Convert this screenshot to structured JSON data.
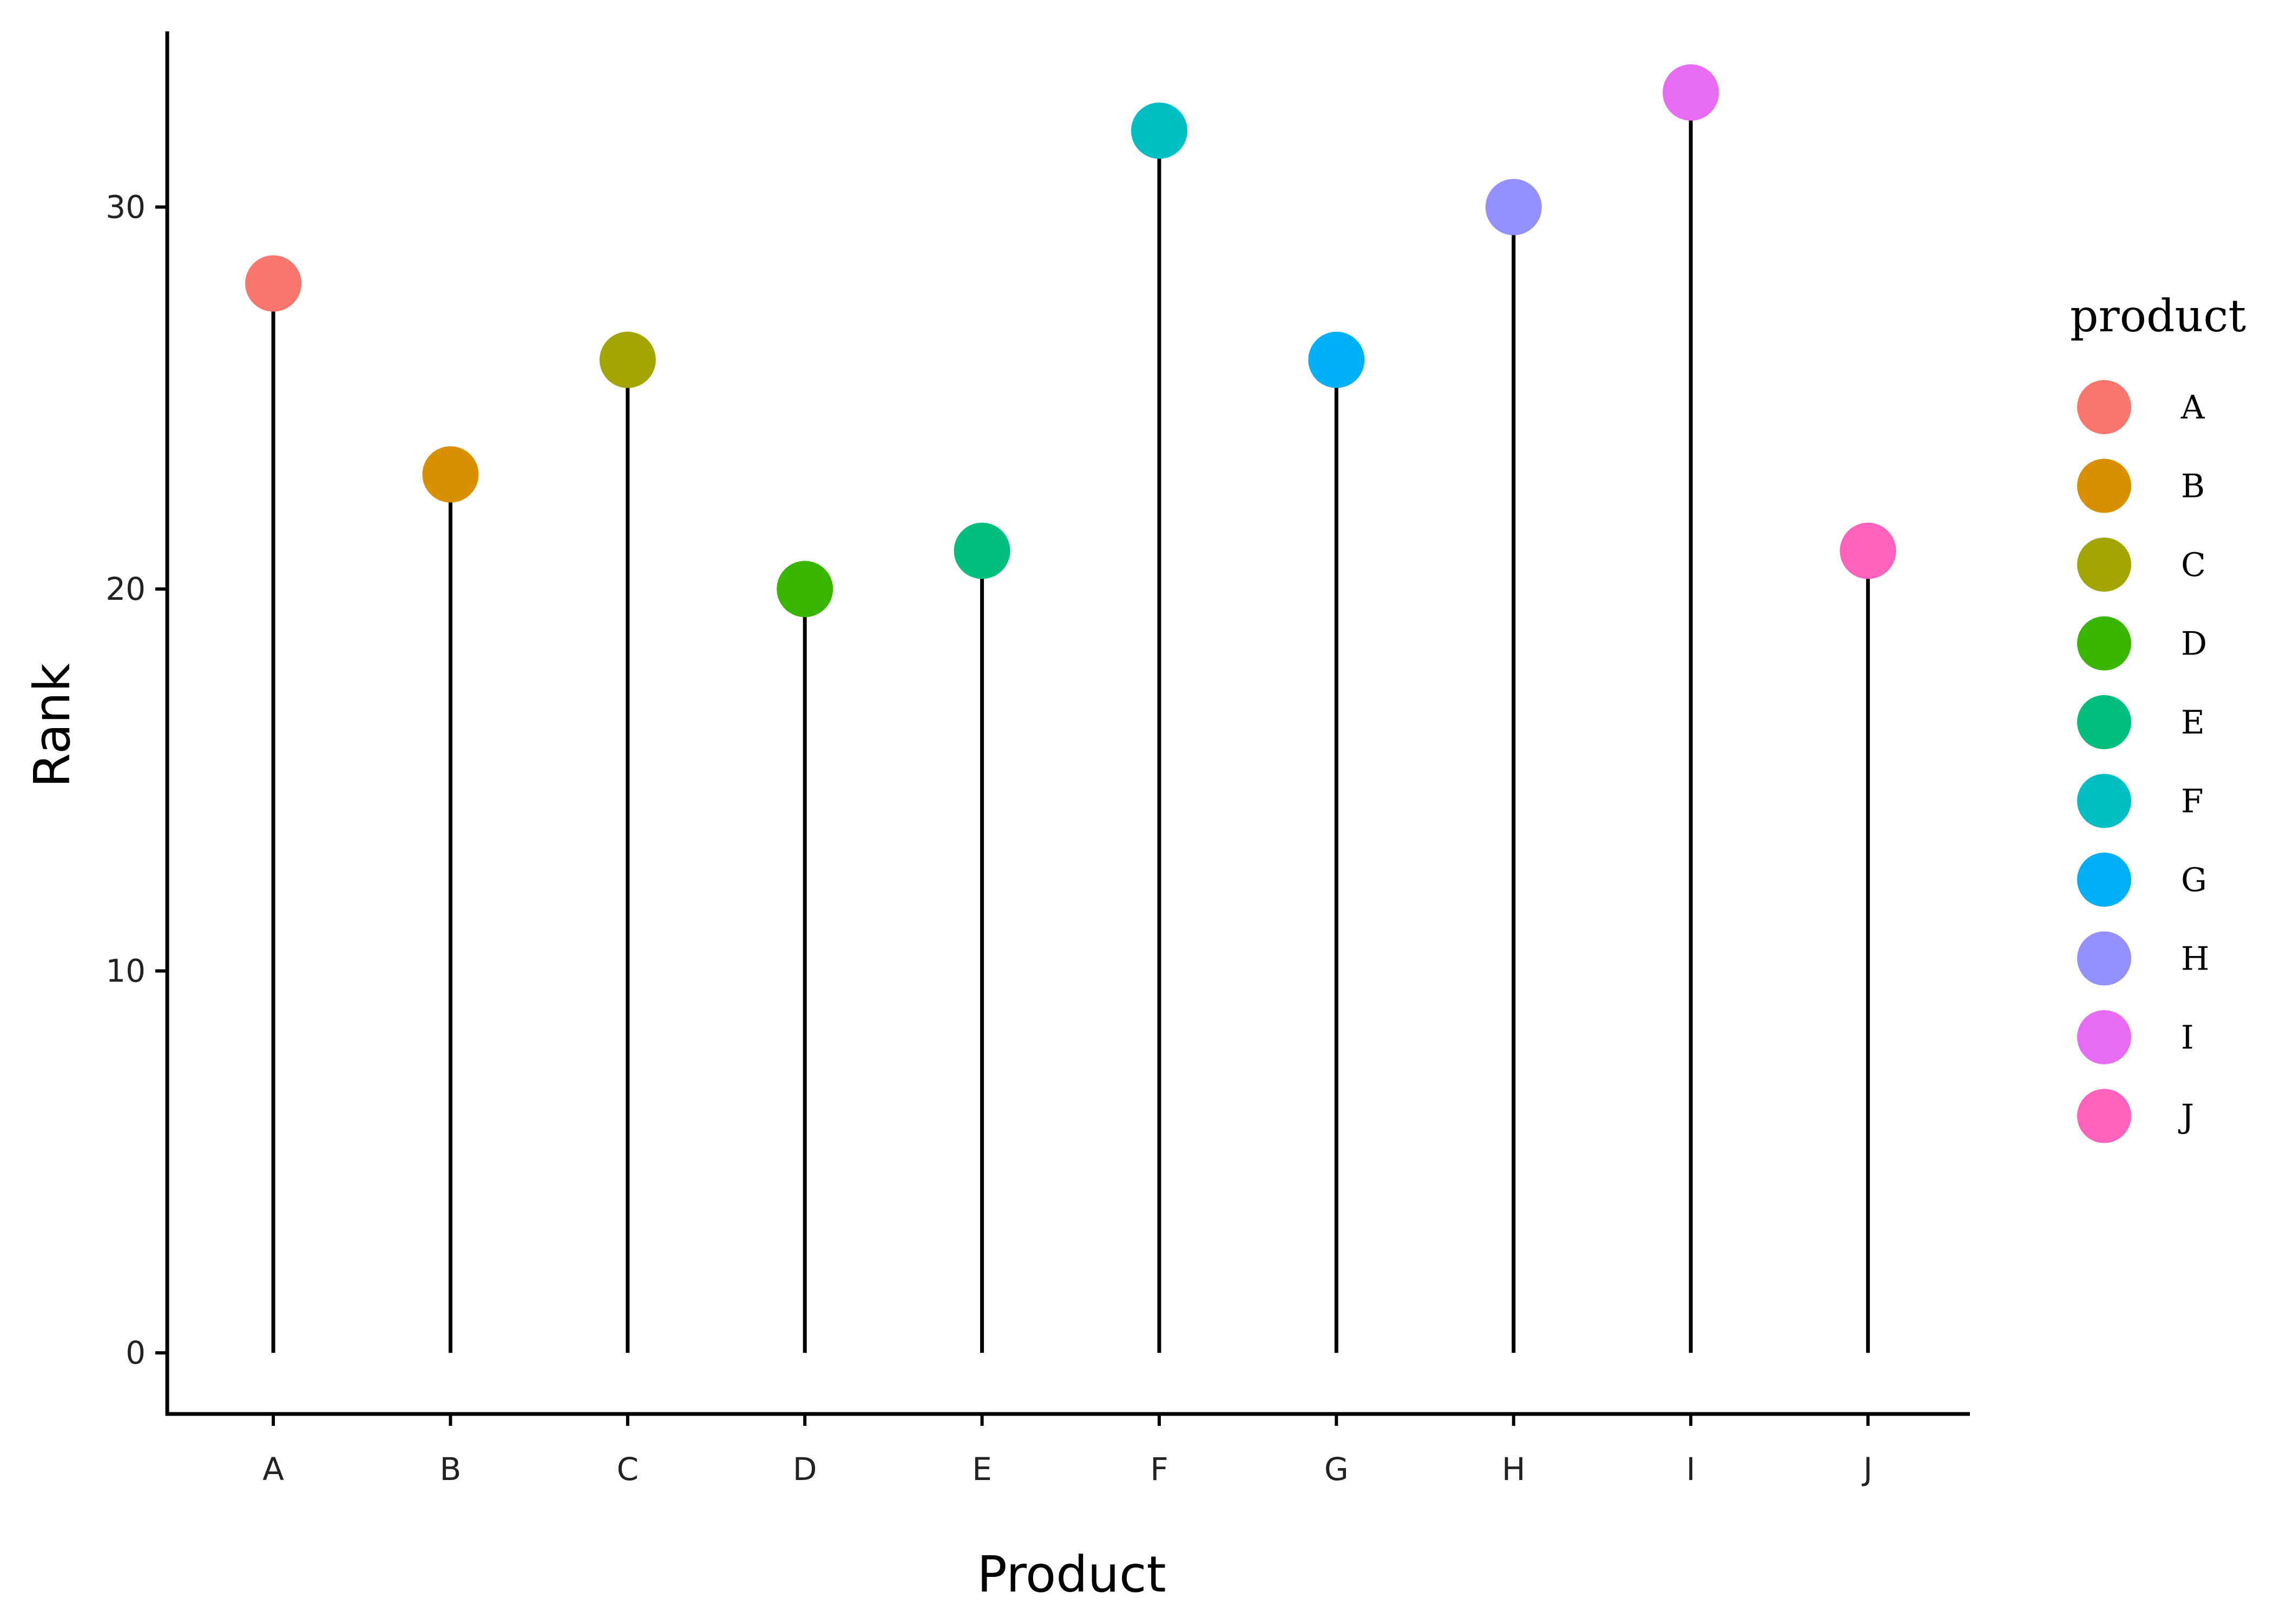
{
  "chart_data": {
    "type": "lollipop",
    "categories": [
      "A",
      "B",
      "C",
      "D",
      "E",
      "F",
      "G",
      "H",
      "I",
      "J"
    ],
    "values": [
      28,
      23,
      26,
      20,
      21,
      32,
      26,
      30,
      33,
      21
    ],
    "colors": [
      "#F8766D",
      "#D89000",
      "#A3A500",
      "#39B600",
      "#00BF7D",
      "#00BFC4",
      "#00B0F6",
      "#9590FF",
      "#E76BF3",
      "#FF62BC"
    ],
    "xlabel": "Product",
    "ylabel": "Rank",
    "ylim": [
      -1.6,
      34.6
    ],
    "yticks": [
      0,
      10,
      20,
      30
    ],
    "legend": {
      "title": "product",
      "position": "right",
      "items": [
        "A",
        "B",
        "C",
        "D",
        "E",
        "F",
        "G",
        "H",
        "I",
        "J"
      ]
    },
    "grid": false
  }
}
